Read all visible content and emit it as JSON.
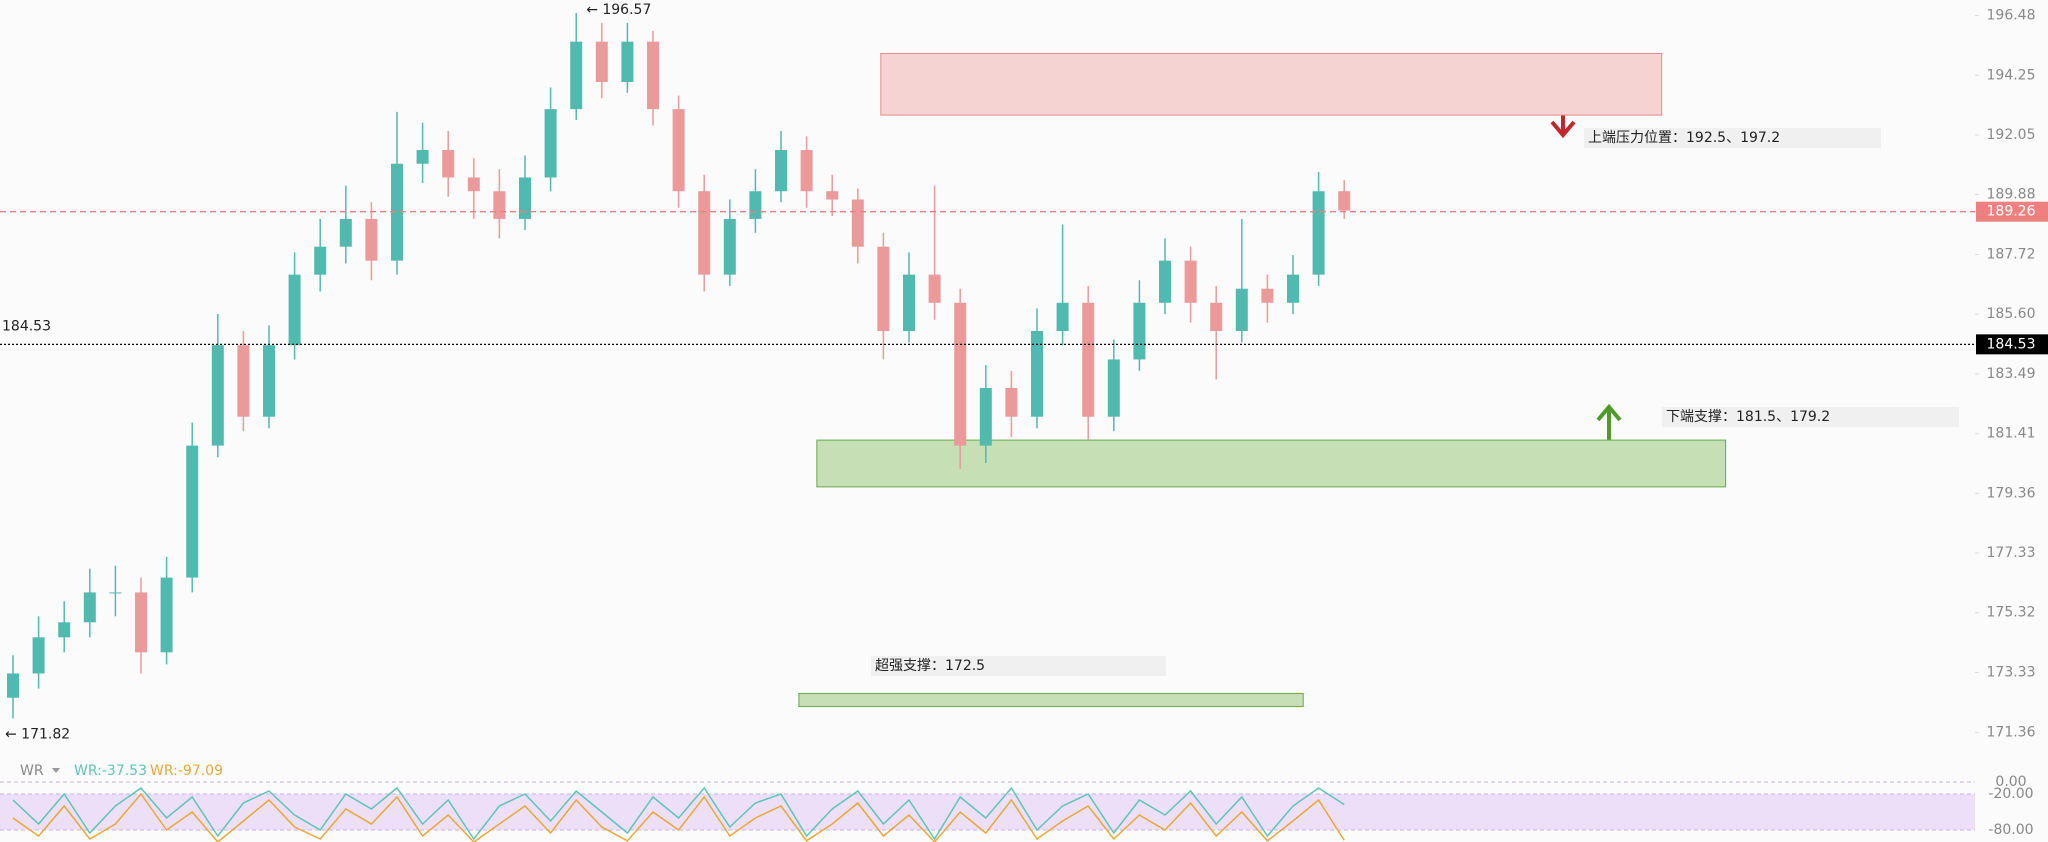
{
  "chart_data": {
    "type": "candlestick",
    "log_scale": true,
    "ylim": [
      170.56,
      197.06
    ],
    "yticks": [
      196.48,
      194.25,
      192.05,
      189.88,
      187.72,
      {
        "value": 185.6,
        "label": "185.60"
      },
      183.49,
      181.41,
      179.36,
      177.33,
      175.32,
      173.33,
      171.36
    ],
    "up_color": "#52b9ae",
    "down_color": "#ea9a9a",
    "open": [
      172.5,
      173.3,
      174.5,
      175.0,
      176.0,
      176.0,
      174.0,
      176.5,
      181.0,
      184.5,
      182.0,
      184.5,
      187.0,
      188.0,
      189.0,
      187.5,
      191.0,
      191.5,
      190.5,
      190.0,
      189.0,
      190.5,
      193.0,
      195.5,
      194.0,
      195.5,
      193.0,
      190.0,
      187.0,
      189.0,
      190.0,
      191.5,
      190.0,
      189.7,
      188.0,
      185.0,
      187.0,
      186.0,
      181.0,
      183.0,
      182.0,
      185.0,
      186.0,
      182.0,
      184.0,
      186.0,
      187.5,
      186.0,
      185.0,
      186.5,
      186.0,
      187.0,
      190.0
    ],
    "high": [
      173.9,
      175.2,
      175.7,
      176.8,
      176.9,
      176.5,
      177.2,
      181.8,
      185.6,
      185.0,
      185.2,
      187.8,
      189.0,
      190.2,
      189.6,
      192.9,
      192.5,
      192.2,
      191.2,
      190.8,
      191.3,
      193.8,
      196.57,
      196.2,
      196.2,
      195.9,
      193.5,
      190.6,
      189.7,
      190.8,
      192.2,
      192.0,
      190.6,
      190.1,
      188.5,
      187.8,
      190.2,
      186.5,
      183.8,
      183.6,
      185.8,
      188.8,
      186.6,
      184.7,
      186.8,
      188.3,
      188.0,
      186.6,
      189.0,
      187.0,
      187.7,
      190.7,
      190.4
    ],
    "low": [
      171.82,
      172.8,
      174.0,
      174.5,
      175.2,
      173.3,
      173.6,
      176.0,
      180.6,
      181.5,
      181.6,
      184.0,
      186.4,
      187.4,
      186.8,
      187.0,
      190.3,
      189.8,
      189.0,
      188.3,
      188.6,
      190.0,
      192.6,
      193.4,
      193.6,
      192.4,
      189.4,
      186.4,
      186.6,
      188.5,
      189.6,
      189.4,
      189.1,
      187.4,
      184.0,
      184.6,
      185.4,
      180.2,
      180.4,
      181.3,
      181.6,
      184.5,
      181.2,
      181.5,
      183.6,
      185.6,
      185.3,
      183.3,
      184.6,
      185.3,
      185.6,
      186.6,
      189.0
    ],
    "close": [
      173.3,
      174.5,
      175.0,
      176.0,
      176.0,
      174.0,
      176.5,
      181.0,
      184.5,
      182.0,
      184.5,
      187.0,
      188.0,
      189.0,
      187.5,
      191.0,
      191.5,
      190.5,
      190.0,
      189.0,
      190.5,
      193.0,
      195.5,
      194.0,
      195.5,
      193.0,
      190.0,
      187.0,
      189.0,
      190.0,
      191.5,
      190.0,
      189.7,
      188.0,
      185.0,
      187.0,
      186.0,
      181.0,
      183.0,
      182.0,
      185.0,
      186.0,
      182.0,
      184.0,
      186.0,
      187.5,
      186.0,
      185.0,
      186.5,
      186.0,
      187.0,
      190.0,
      189.3
    ],
    "extremes": [
      {
        "index": 22,
        "value": 196.57,
        "label": "← 196.57"
      },
      {
        "index": 0,
        "value": 171.82,
        "label": "← 171.82"
      }
    ],
    "price_lines": [
      {
        "value": 189.26,
        "color": "#f08080",
        "style": "dashed"
      },
      {
        "value": 184.53,
        "color": "#000000",
        "style": "dotted"
      }
    ],
    "zones": [
      {
        "label": "上端压力位置：192.5、197.2",
        "range": [
          192.78,
          195.06
        ],
        "x_range": [
          33.9,
          64.4
        ],
        "color": "#f6d3d3",
        "stroke": "#e88a8a"
      },
      {
        "label": "下端支撑：181.5、179.2",
        "range": [
          179.58,
          181.19
        ],
        "x_range": [
          31.4,
          66.9
        ],
        "color": "#c6dfb4",
        "stroke": "#6aa84f"
      },
      {
        "label": "超强支撑：172.5",
        "range": [
          172.21,
          172.64
        ],
        "x_range": [
          30.7,
          50.4
        ],
        "color": "#c6dfb4",
        "stroke": "#6aa84f"
      }
    ]
  },
  "indicator": {
    "type": "line",
    "title": "WR",
    "ylim": [
      -100,
      20
    ],
    "yticks": [
      {
        "value": 0,
        "label": "0.00"
      },
      {
        "value": -20,
        "label": "-20.00"
      },
      {
        "value": -80,
        "label": "-80.00"
      }
    ],
    "band": [
      -80,
      -20
    ],
    "band_color": "#ecdff7",
    "series": [
      {
        "legend": "WR:-37.53",
        "color": "#5ec4b6",
        "values": [
          -30,
          -70,
          -20,
          -85,
          -40,
          -10,
          -60,
          -25,
          -90,
          -35,
          -15,
          -55,
          -80,
          -20,
          -45,
          -10,
          -70,
          -30,
          -95,
          -40,
          -20,
          -65,
          -15,
          -50,
          -85,
          -25,
          -60,
          -10,
          -75,
          -35,
          -20,
          -90,
          -45,
          -15,
          -70,
          -30,
          -95,
          -25,
          -60,
          -10,
          -80,
          -40,
          -20,
          -85,
          -30,
          -55,
          -15,
          -70,
          -25,
          -90,
          -40,
          -10,
          -37.53
        ]
      },
      {
        "legend": "WR:-97.09",
        "color": "#e8a838",
        "values": [
          -60,
          -90,
          -40,
          -95,
          -70,
          -20,
          -80,
          -50,
          -100,
          -65,
          -30,
          -75,
          -95,
          -45,
          -70,
          -25,
          -90,
          -55,
          -100,
          -70,
          -40,
          -85,
          -30,
          -75,
          -98,
          -50,
          -80,
          -25,
          -90,
          -60,
          -40,
          -98,
          -70,
          -35,
          -90,
          -55,
          -100,
          -50,
          -85,
          -30,
          -95,
          -65,
          -40,
          -95,
          -55,
          -80,
          -35,
          -90,
          -50,
          -98,
          -65,
          -30,
          -97.09
        ]
      }
    ]
  }
}
